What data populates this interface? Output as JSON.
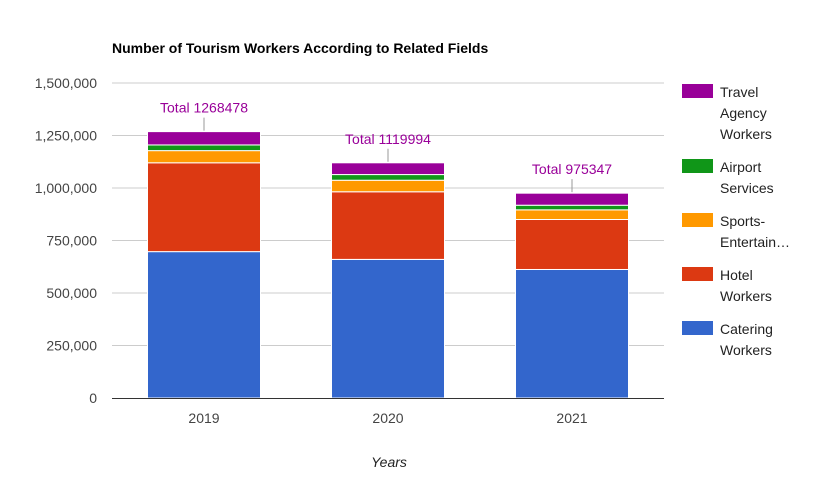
{
  "chart_data": {
    "type": "bar",
    "stacked": true,
    "title": "Number of Tourism Workers According to Related Fields",
    "xlabel": "Years",
    "ylabel": "",
    "categories": [
      "2019",
      "2020",
      "2021"
    ],
    "ylim": [
      0,
      1500000
    ],
    "yticks": [
      0,
      250000,
      500000,
      750000,
      1000000,
      1250000,
      1500000
    ],
    "ytick_labels": [
      "0",
      "250,000",
      "500,000",
      "750,000",
      "1,000,000",
      "1,250,000",
      "1,500,000"
    ],
    "grid": true,
    "legend_position": "right",
    "series": [
      {
        "name": "Catering Workers",
        "legend_lines": [
          "Catering",
          "Workers"
        ],
        "color": "#3366cc",
        "values": [
          697000,
          660000,
          612000
        ]
      },
      {
        "name": "Hotel Workers",
        "legend_lines": [
          "Hotel",
          "Workers"
        ],
        "color": "#dc3912",
        "values": [
          423000,
          322000,
          238000
        ]
      },
      {
        "name": "Sports-Entertain…",
        "legend_lines": [
          "Sports-",
          "Entertain…"
        ],
        "color": "#ff9900",
        "values": [
          58000,
          55000,
          46000
        ]
      },
      {
        "name": "Airport Services",
        "legend_lines": [
          "Airport",
          "Services"
        ],
        "color": "#109618",
        "values": [
          27000,
          27000,
          22000
        ]
      },
      {
        "name": "Travel Agency Workers",
        "legend_lines": [
          "Travel",
          "Agency",
          "Workers"
        ],
        "color": "#990099",
        "values": [
          63478,
          55994,
          57347
        ]
      }
    ],
    "totals": [
      {
        "label": "Total 1268478",
        "value": 1268478,
        "color": "#990099"
      },
      {
        "label": "Total 1119994",
        "value": 1119994,
        "color": "#990099"
      },
      {
        "label": "Total 975347",
        "value": 975347,
        "color": "#990099"
      }
    ],
    "colors": {
      "grid": "#cccccc",
      "baseline": "#333333",
      "annotation": "#990099"
    }
  }
}
